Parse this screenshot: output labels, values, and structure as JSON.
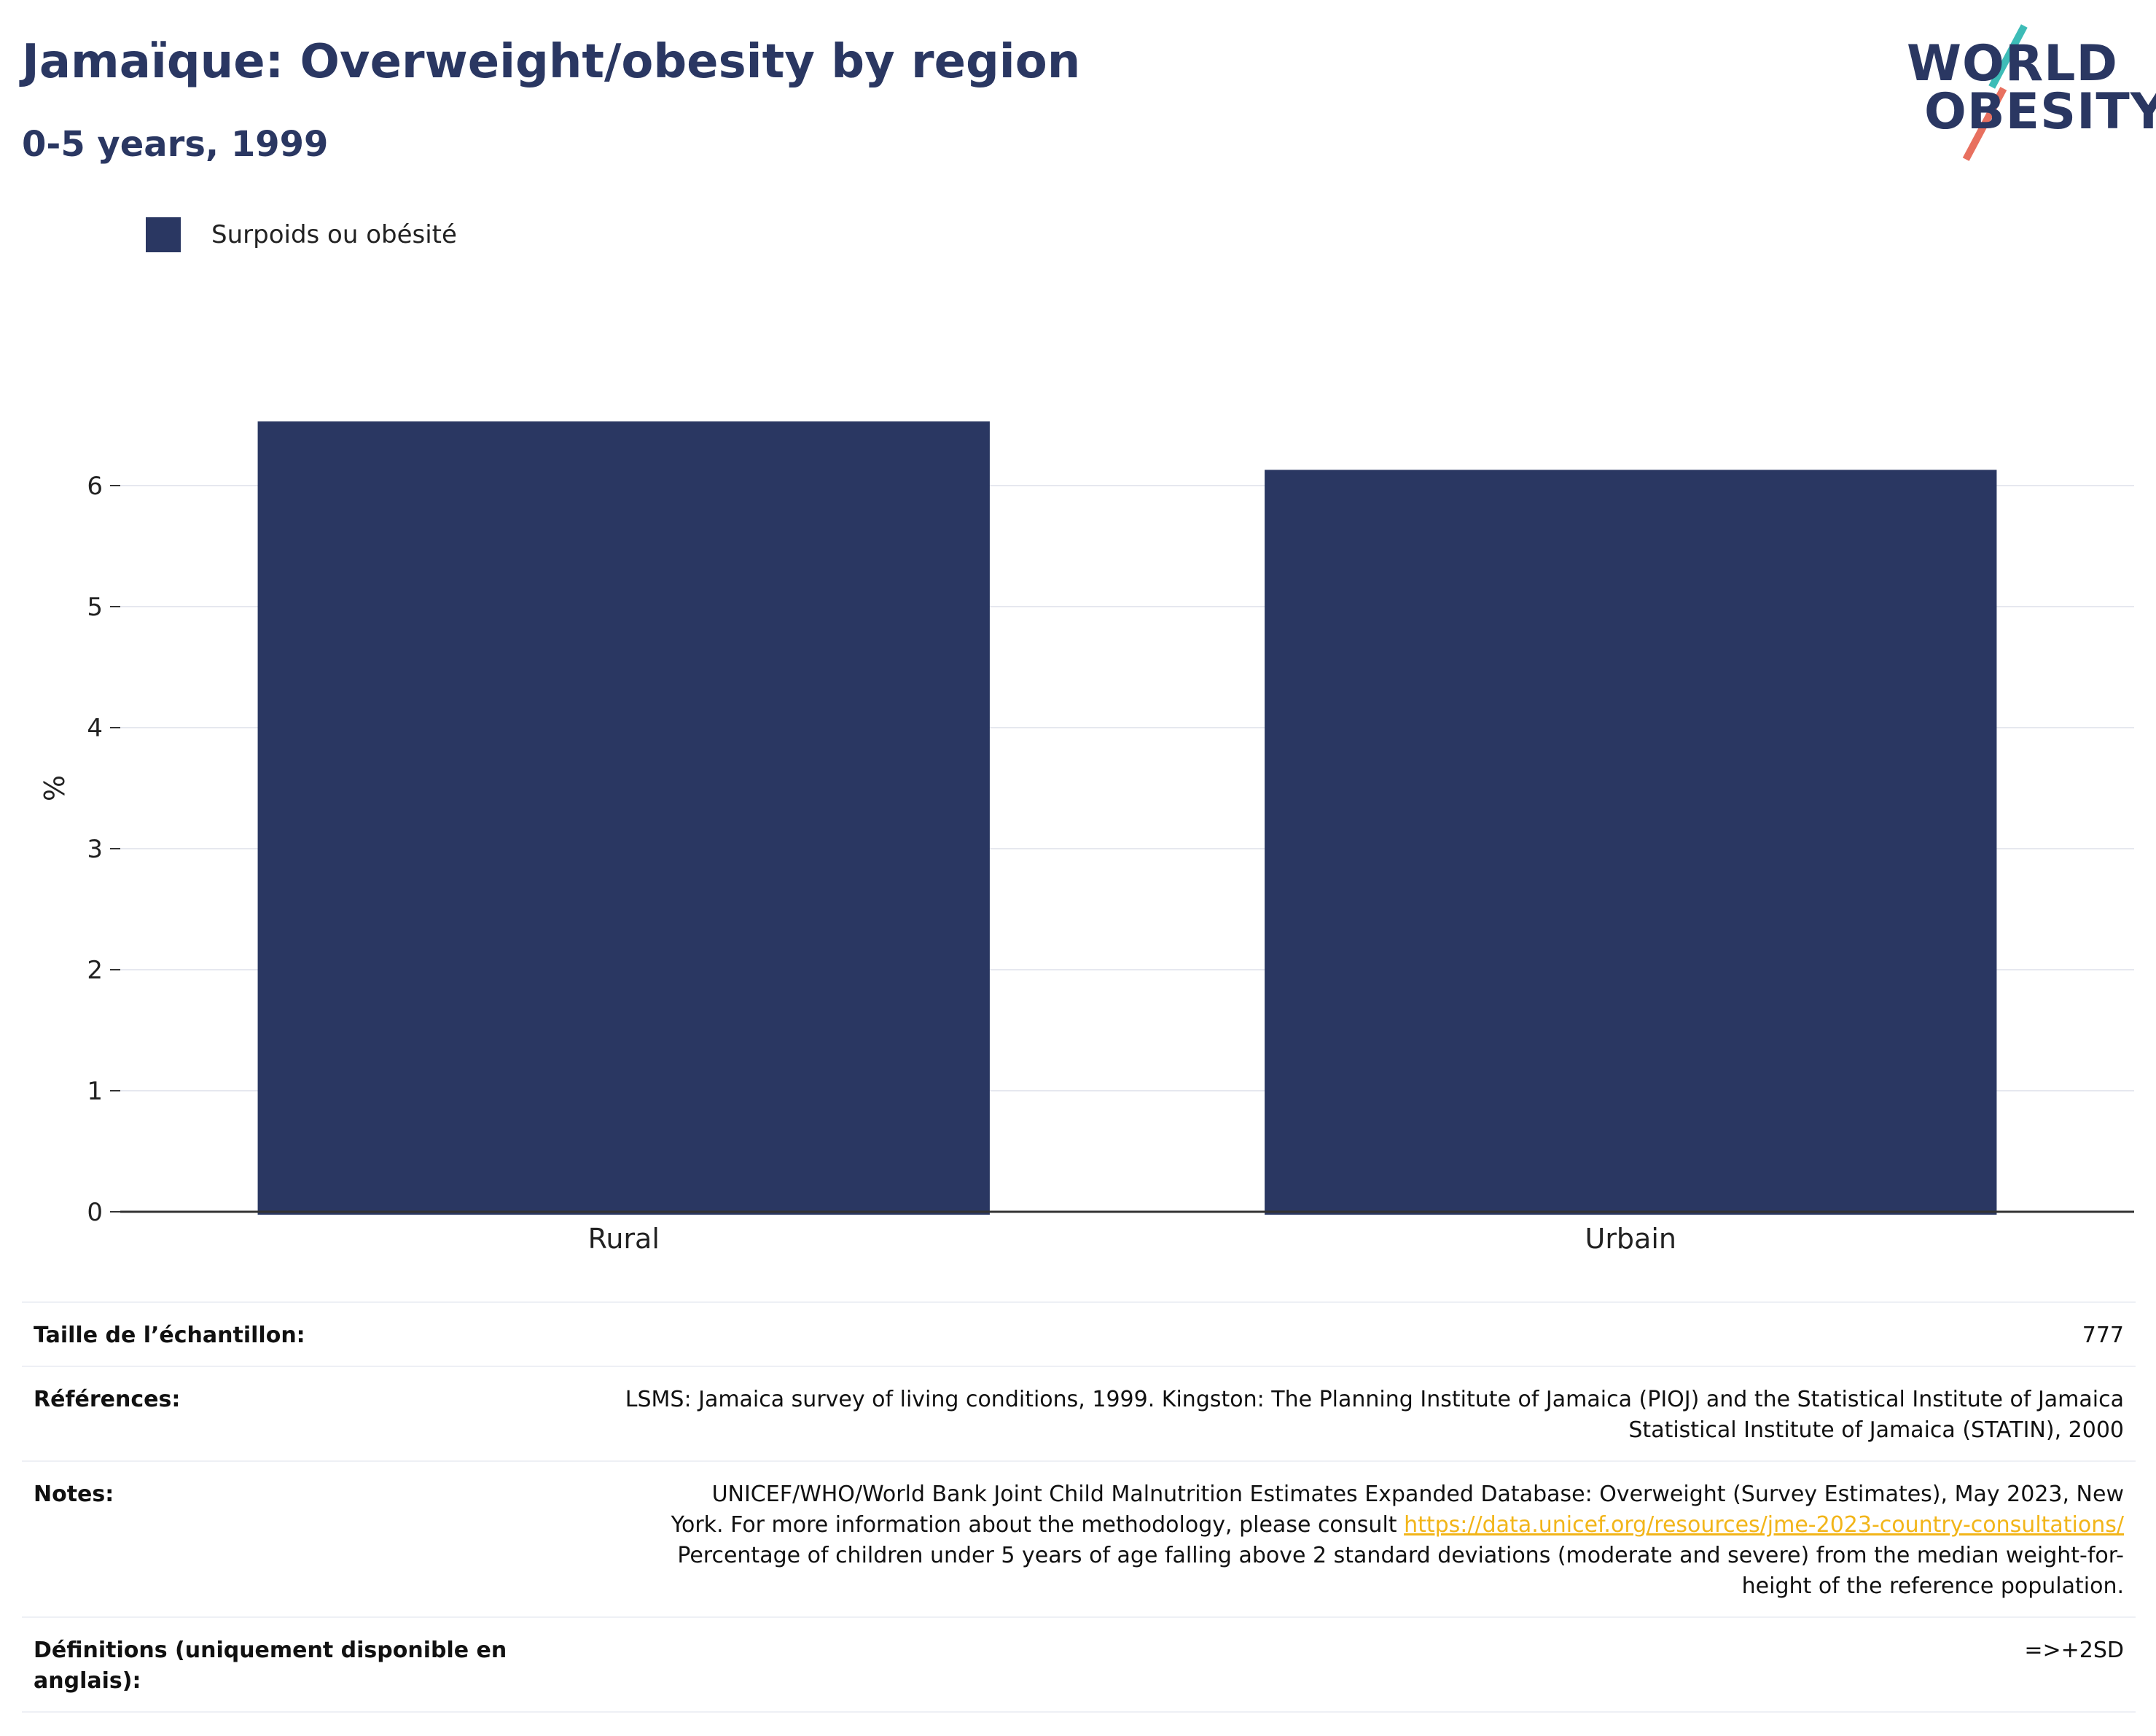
{
  "header": {
    "title": "Jamaïque: Overweight/obesity by region",
    "subtitle": "0-5 years, 1999"
  },
  "logo": {
    "line1": "WORLD",
    "line2": "OBESITY"
  },
  "colors": {
    "bar": "#2a3762",
    "grid": "#e6e8ef",
    "axis": "#333333",
    "link": "#f2b519",
    "logo_teal": "#3dbcb7",
    "logo_coral": "#e8705f"
  },
  "chart_data": {
    "type": "bar",
    "categories": [
      "Rural",
      "Urbain"
    ],
    "series": [
      {
        "name": "Surpoids ou obésité",
        "values": [
          6.53,
          6.13
        ]
      }
    ],
    "ylabel": "%",
    "xlabel": "",
    "ylim": [
      0,
      7
    ],
    "yticks": [
      0,
      1,
      2,
      3,
      4,
      5,
      6
    ],
    "grid": true,
    "legend": "top-left"
  },
  "info": {
    "sample_label": "Taille de l’échantillon:",
    "sample_value": "777",
    "references_label": "Références:",
    "references_lines": [
      "LSMS: Jamaica survey of living conditions, 1999. Kingston: The Planning Institute of Jamaica (PIOJ) and the Statistical Institute of Jamaica",
      "Statistical Institute of Jamaica (STATIN), 2000"
    ],
    "notes_label": "Notes:",
    "notes_line1": "UNICEF/WHO/World Bank Joint Child Malnutrition Estimates Expanded Database: Overweight (Survey Estimates), May 2023, New",
    "notes_line2_pre": "York. For more information about the methodology, please consult ",
    "notes_link": "https://data.unicef.org/resources/jme-2023-country-consultations/",
    "notes_line3": "Percentage of children under 5 years of age falling above 2 standard deviations (moderate and severe) from the median weight-for-",
    "notes_line4": "height of the reference population.",
    "definitions_label_line1": "Définitions (uniquement disponible en",
    "definitions_label_line2": "anglais):",
    "definitions_value": "=>+2SD"
  }
}
